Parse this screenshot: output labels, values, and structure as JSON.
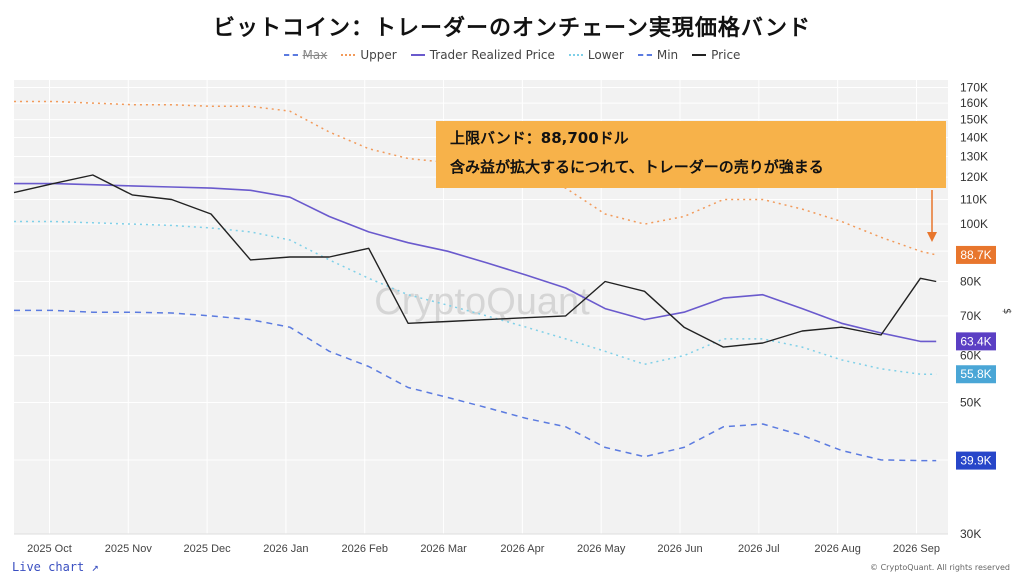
{
  "title": "ビットコイン：トレーダーのオンチェーン実現価格バンド",
  "legend": [
    {
      "label": "Max",
      "color": "#5b7be0",
      "style": "dashed",
      "hidden": true
    },
    {
      "label": "Upper",
      "color": "#f29a5a",
      "style": "dotted",
      "hidden": false
    },
    {
      "label": "Trader Realized Price",
      "color": "#6a5acd",
      "style": "solid",
      "hidden": false
    },
    {
      "label": "Lower",
      "color": "#7fd0e8",
      "style": "dotted",
      "hidden": false
    },
    {
      "label": "Min",
      "color": "#5b7be0",
      "style": "dashed",
      "hidden": false
    },
    {
      "label": "Price",
      "color": "#222222",
      "style": "solid",
      "hidden": false
    }
  ],
  "callout": {
    "line1": "上限バンド：88,700ドル",
    "line2": "含み益が拡大するにつれて、トレーダーの売りが強まる"
  },
  "watermark": "CryptoQuant",
  "live_chart": "Live chart ↗",
  "copyright": "© CryptoQuant. All rights reserved",
  "chart_data": {
    "type": "line",
    "x_ticks": [
      "2025 Oct",
      "2025 Nov",
      "2025 Dec",
      "2026 Jan",
      "2026 Feb",
      "2026 Mar",
      "2026 Apr",
      "2026 May",
      "2026 Jun",
      "2026 Jul",
      "2026 Aug",
      "2026 Sep"
    ],
    "y_scale": "log",
    "y_ticks": [
      "30K",
      "40K",
      "50K",
      "60K",
      "70K",
      "80K",
      "90K",
      "100K",
      "110K",
      "120K",
      "130K",
      "140K",
      "150K",
      "160K",
      "170K"
    ],
    "y_tick_values": [
      30000,
      40000,
      50000,
      60000,
      70000,
      80000,
      90000,
      100000,
      110000,
      120000,
      130000,
      140000,
      150000,
      160000,
      170000
    ],
    "y_axis_unit": "$",
    "ylim": [
      30000,
      175000
    ],
    "x": [
      0,
      0.5,
      1,
      1.5,
      2,
      2.5,
      3,
      3.5,
      4,
      4.5,
      5,
      5.5,
      6,
      6.5,
      7,
      7.5,
      8,
      8.5,
      9,
      9.5,
      10,
      10.5,
      11,
      11.5,
      11.7
    ],
    "series": [
      {
        "name": "Upper",
        "color": "#f29a5a",
        "values": [
          161000,
          161000,
          160000,
          159000,
          159000,
          158000,
          158000,
          155000,
          143000,
          134000,
          129000,
          127000,
          125000,
          121000,
          115000,
          104000,
          100000,
          103000,
          110000,
          110000,
          106000,
          101000,
          95000,
          90000,
          88700
        ]
      },
      {
        "name": "Trader Realized Price",
        "color": "#6a5acd",
        "values": [
          117000,
          117000,
          116500,
          116000,
          115500,
          115000,
          114000,
          111000,
          103000,
          97000,
          93000,
          90000,
          86000,
          82000,
          78000,
          72000,
          69000,
          71000,
          75000,
          76000,
          72000,
          68000,
          65500,
          63400,
          63400
        ]
      },
      {
        "name": "Lower",
        "color": "#7fd0e8",
        "values": [
          101000,
          101000,
          100500,
          100000,
          99500,
          98500,
          97000,
          94000,
          87000,
          81000,
          76000,
          73000,
          70000,
          67000,
          64000,
          61000,
          58000,
          60000,
          64000,
          64000,
          62000,
          59000,
          57000,
          55800,
          55800
        ]
      },
      {
        "name": "Min",
        "color": "#5b7be0",
        "values": [
          71500,
          71500,
          71000,
          71000,
          70800,
          70000,
          69000,
          67000,
          61000,
          57500,
          53000,
          51000,
          49000,
          47000,
          45500,
          42000,
          40500,
          42000,
          45500,
          46000,
          44000,
          41500,
          40000,
          39900,
          39900
        ]
      },
      {
        "name": "Price",
        "color": "#222222",
        "values": [
          113000,
          117000,
          121000,
          112000,
          110000,
          104000,
          87000,
          88000,
          88000,
          91000,
          68000,
          68500,
          69000,
          69500,
          70000,
          80000,
          77000,
          67000,
          62000,
          63000,
          66000,
          67000,
          65000,
          81000,
          80000
        ]
      }
    ],
    "latest_labels": [
      {
        "text": "88.7K",
        "value": 88700,
        "color": "#e8762d"
      },
      {
        "text": "63.4K",
        "value": 63400,
        "color": "#5b3fc4"
      },
      {
        "text": "55.8K",
        "value": 55800,
        "color": "#4aa6d6"
      },
      {
        "text": "39.9K",
        "value": 39900,
        "color": "#2746c9"
      }
    ]
  }
}
